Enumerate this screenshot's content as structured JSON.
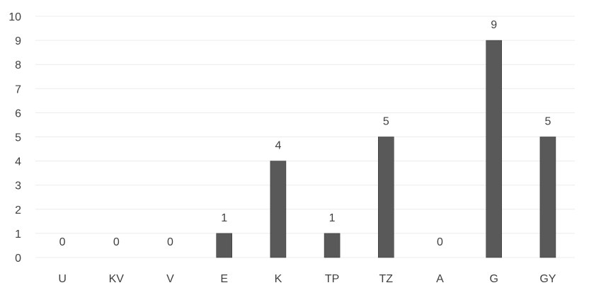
{
  "chart_data": {
    "type": "bar",
    "title": "",
    "xlabel": "",
    "ylabel": "",
    "categories": [
      "U",
      "KV",
      "V",
      "E",
      "K",
      "TP",
      "TZ",
      "A",
      "G",
      "GY"
    ],
    "values": [
      0,
      0,
      0,
      1,
      4,
      1,
      5,
      0,
      9,
      5
    ],
    "ylim": [
      0,
      10
    ],
    "yticks": [
      0,
      1,
      2,
      3,
      4,
      5,
      6,
      7,
      8,
      9,
      10
    ],
    "data_labels": true,
    "grid": true,
    "legend": "none",
    "colors": {
      "bar": "#595959",
      "text": "#404040",
      "grid": "#ececec"
    }
  }
}
